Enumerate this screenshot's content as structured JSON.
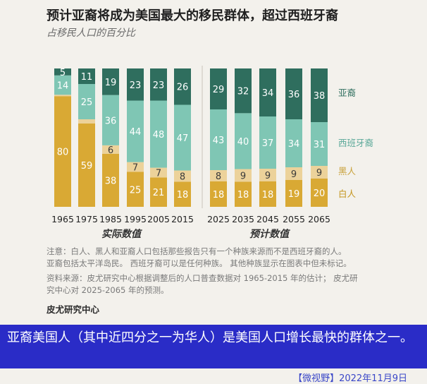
{
  "title": "预计亚裔将成为美国最大的移民群体，超过西班牙裔",
  "subtitle": "占移民人口的百分比",
  "notes": {
    "line1": "注意：白人、黑人和亚裔人口包括那些报告只有一个种族来源而不是西班牙裔的人。",
    "line2": "亚裔包括太平洋岛民。 西班牙裔可以是任何种族。 其他种族显示在图表中但未标记。",
    "line3": "资料来源：皮尤研究中心根据调整后的人口普查数据对 1965-2015 年的估计； 皮尤研",
    "line4": "究中心对 2025-2065 年的预测。"
  },
  "source_org": "皮尤研究中心",
  "caption": "亚裔美国人（其中近四分之一为华人）是美国人口增长最快的群体之一。",
  "date": "【微视野】2022年11月9日",
  "colors": {
    "asian": "#2f6e5e",
    "hispanic": "#7fc6b4",
    "black": "#ecd29a",
    "white": "#d9a934",
    "label_dark": "#2f6e5e",
    "label_hispanic": "#5aa898",
    "label_black": "#c9a23c",
    "label_white": "#c59620"
  },
  "chart_data": {
    "type": "bar",
    "stacked": true,
    "categories": [
      "1965",
      "1975",
      "1985",
      "1995",
      "2005",
      "2015",
      "2025",
      "2035",
      "2045",
      "2055",
      "2065"
    ],
    "groups": [
      {
        "label": "实际数值",
        "categories": [
          "1965",
          "1975",
          "1985",
          "1995",
          "2005",
          "2015"
        ]
      },
      {
        "label": "预计数值",
        "categories": [
          "2025",
          "2035",
          "2045",
          "2055",
          "2065"
        ]
      }
    ],
    "series": [
      {
        "name": "白人",
        "values": [
          80,
          59,
          38,
          25,
          21,
          18,
          18,
          18,
          18,
          19,
          20
        ]
      },
      {
        "name": "黑人",
        "values": [
          1,
          3,
          6,
          7,
          7,
          8,
          8,
          9,
          9,
          9,
          9
        ]
      },
      {
        "name": "西班牙裔",
        "values": [
          14,
          25,
          36,
          44,
          48,
          47,
          43,
          40,
          37,
          34,
          31
        ]
      },
      {
        "name": "亚裔",
        "values": [
          5,
          11,
          19,
          23,
          23,
          26,
          29,
          32,
          34,
          36,
          38
        ]
      }
    ],
    "value_labels": {
      "白人": [
        "80",
        "59",
        "38",
        "25",
        "21",
        "18",
        "18",
        "18",
        "18",
        "19",
        "20"
      ],
      "黑人": [
        "",
        "",
        "6",
        "7",
        "7",
        "8",
        "8",
        "9",
        "9",
        "9",
        "9"
      ],
      "西班牙裔": [
        "14",
        "25",
        "36",
        "44",
        "48",
        "47",
        "43",
        "40",
        "37",
        "34",
        "31"
      ],
      "亚裔": [
        "5",
        "11",
        "19",
        "23",
        "23",
        "26",
        "29",
        "32",
        "34",
        "36",
        "38"
      ]
    },
    "ylim": [
      0,
      100
    ],
    "grid": false,
    "legend": "right"
  }
}
